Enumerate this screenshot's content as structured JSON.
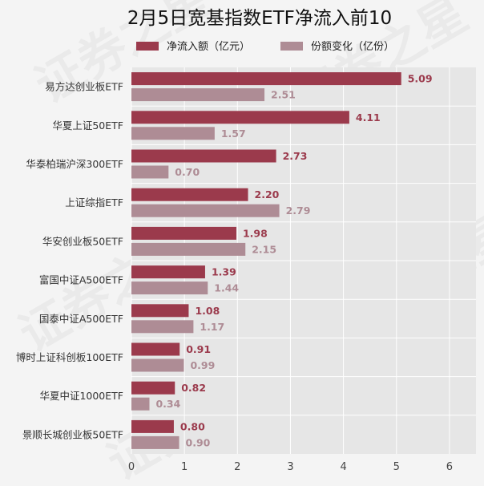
{
  "chart_data": {
    "type": "bar",
    "orientation": "horizontal",
    "title": "2月5日宽基指数ETF净流入前10",
    "categories": [
      "易方达创业板ETF",
      "华夏上证50ETF",
      "华泰柏瑞沪深300ETF",
      "上证综指ETF",
      "华安创业板50ETF",
      "富国中证A500ETF",
      "国泰中证A500ETF",
      "博时上证科创板100ETF",
      "华夏中证1000ETF",
      "景顺长城创业板50ETF"
    ],
    "series": [
      {
        "name": "净流入额（亿元）",
        "color": "#9b3a4c",
        "values": [
          5.09,
          4.11,
          2.73,
          2.2,
          1.98,
          1.39,
          1.08,
          0.91,
          0.82,
          0.8
        ]
      },
      {
        "name": "份额变化（亿份）",
        "color": "#ae8c95",
        "values": [
          2.51,
          1.57,
          0.7,
          2.79,
          2.15,
          1.44,
          1.17,
          0.99,
          0.34,
          0.9
        ]
      }
    ],
    "xlim": [
      0,
      6.5
    ],
    "xticks": [
      0,
      1,
      2,
      3,
      4,
      5,
      6
    ],
    "grid": true,
    "legend_position": "top",
    "value_labels": true
  },
  "colors": {
    "plot_background": "#e6e6e6",
    "grid": "#ffffff"
  },
  "watermark": "证券之星"
}
